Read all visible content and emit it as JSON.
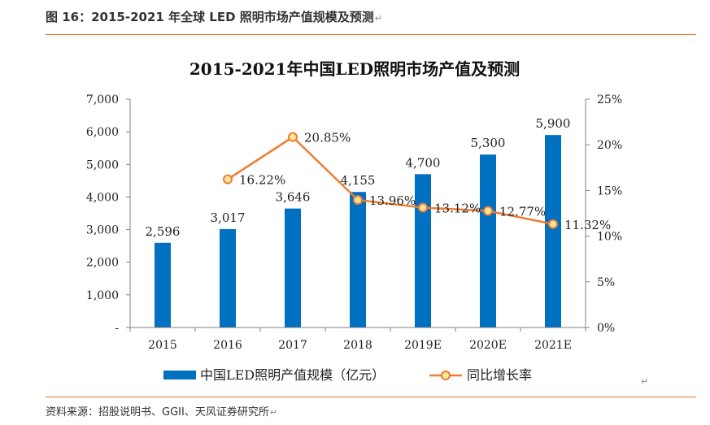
{
  "header": {
    "figure_title": "图 16：2015-2021 年全球 LED 照明市场产值规模及预测",
    "return_mark": "↵"
  },
  "footer": {
    "source": "资料来源：招股说明书、GGII、天风证券研究所",
    "return_mark": "↵"
  },
  "colors": {
    "bar": "#0070c0",
    "line": "#ed7d31",
    "marker_fill": "#ffe699",
    "rule": "#e1772d",
    "axis": "#808080"
  },
  "chart_data": {
    "type": "bar+line",
    "title": "2015-2021年中国LED照明市场产值及预测",
    "categories": [
      "2015",
      "2016",
      "2017",
      "2018",
      "2019E",
      "2020E",
      "2021E"
    ],
    "series": [
      {
        "name": "中国LED照明产值规模（亿元）",
        "type": "bar",
        "axis": "left",
        "values": [
          2596,
          3017,
          3646,
          4155,
          4700,
          5300,
          5900
        ],
        "labels": [
          "2,596",
          "3,017",
          "3,646",
          "4,155",
          "4,700",
          "5,300",
          "5,900"
        ]
      },
      {
        "name": "同比增长率",
        "type": "line",
        "axis": "right",
        "values": [
          null,
          16.22,
          20.85,
          13.96,
          13.12,
          12.77,
          11.32
        ],
        "labels": [
          "",
          "16.22%",
          "20.85%",
          "13.96%",
          "13.12%",
          "12.77%",
          "11.32%"
        ]
      }
    ],
    "y_left": {
      "range": [
        0,
        7000
      ],
      "ticks": [
        0,
        1000,
        2000,
        3000,
        4000,
        5000,
        6000,
        7000
      ],
      "tick_labels": [
        "-",
        "1,000",
        "2,000",
        "3,000",
        "4,000",
        "5,000",
        "6,000",
        "7,000"
      ]
    },
    "y_right": {
      "range": [
        0,
        25
      ],
      "ticks": [
        0,
        5,
        10,
        15,
        20,
        25
      ],
      "tick_labels": [
        "0%",
        "5%",
        "10%",
        "15%",
        "20%",
        "25%"
      ]
    },
    "grid": false,
    "legend_position": "bottom"
  }
}
